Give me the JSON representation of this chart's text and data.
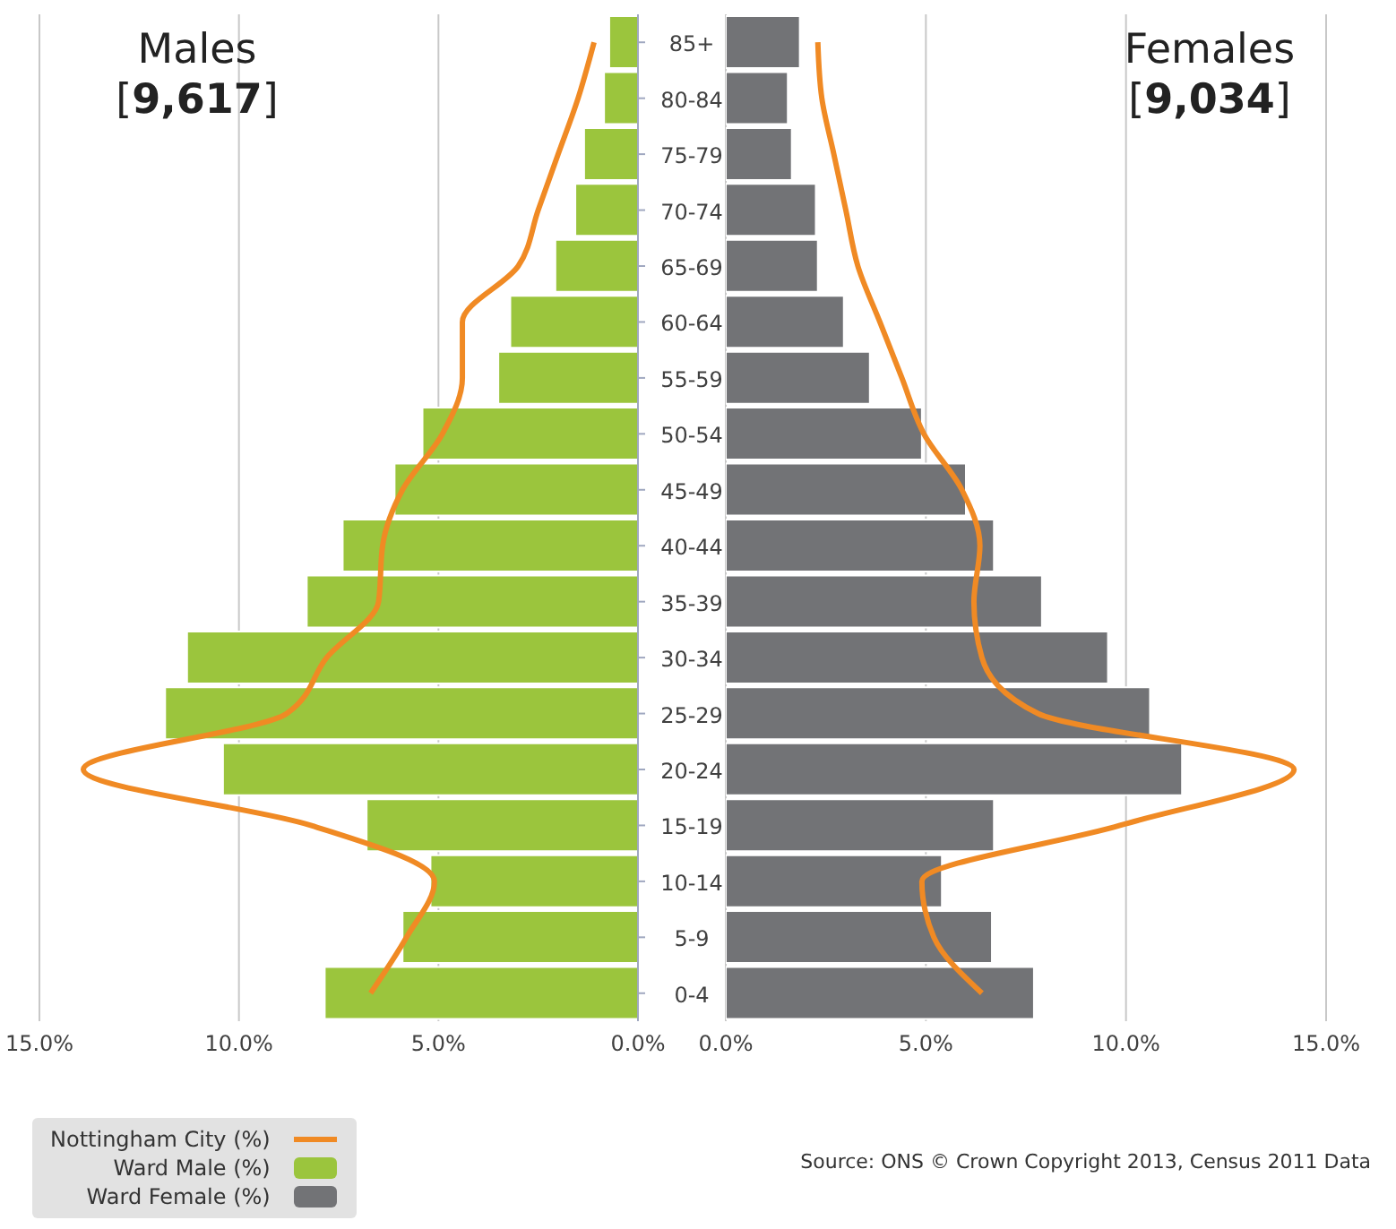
{
  "chart_data": [
    {
      "type": "bar",
      "orientation": "horizontal",
      "title": "Males",
      "subtitle": "[9,617]",
      "categories": [
        "85+",
        "80-84",
        "75-79",
        "70-74",
        "65-69",
        "60-64",
        "55-59",
        "50-54",
        "45-49",
        "40-44",
        "35-39",
        "30-34",
        "25-29",
        "20-24",
        "15-19",
        "10-14",
        "5-9",
        "0-4"
      ],
      "series": [
        {
          "name": "Nottingham City (%)",
          "type": "line",
          "color": "#f08a24",
          "values": [
            1.1,
            1.5,
            2.0,
            2.5,
            3.0,
            4.4,
            4.4,
            4.9,
            5.9,
            6.4,
            6.5,
            7.8,
            8.8,
            13.9,
            8.2,
            5.1,
            5.8,
            6.7
          ]
        },
        {
          "name": "Ward Male (%)",
          "color": "#9bc53d",
          "values": [
            0.72,
            0.85,
            1.35,
            1.57,
            2.07,
            3.2,
            3.5,
            5.4,
            6.1,
            7.4,
            8.3,
            11.3,
            11.85,
            10.4,
            6.8,
            5.2,
            5.9,
            7.85
          ]
        }
      ],
      "xlim": [
        15,
        0
      ],
      "xticks": [
        {
          "value": 15,
          "label": "15.0%"
        },
        {
          "value": 10,
          "label": "10.0%"
        },
        {
          "value": 5,
          "label": "5.0%"
        },
        {
          "value": 0,
          "label": "0.0%"
        }
      ],
      "grid": "x",
      "legend": "bottom left"
    },
    {
      "type": "bar",
      "orientation": "horizontal",
      "title": "Females",
      "subtitle": "[9,034]",
      "series": [
        {
          "type": "line",
          "color": "#f08a24",
          "values": [
            2.3,
            2.4,
            2.7,
            3.0,
            3.3,
            3.85,
            4.4,
            4.95,
            5.9,
            6.35,
            6.2,
            6.4,
            7.8,
            14.2,
            9.85,
            4.9,
            5.2,
            6.4
          ]
        },
        {
          "name": "Ward Female (%)",
          "color": "#727376",
          "values": [
            1.85,
            1.55,
            1.65,
            2.25,
            2.3,
            2.95,
            3.6,
            4.9,
            6.0,
            6.7,
            7.9,
            9.55,
            10.6,
            11.4,
            6.7,
            5.4,
            6.65,
            7.7
          ]
        }
      ],
      "xlim": [
        0,
        15
      ],
      "xticks": [
        {
          "value": 0,
          "label": "0.0%"
        },
        {
          "value": 5,
          "label": "5.0%"
        },
        {
          "value": 10,
          "label": "10.0%"
        },
        {
          "value": 15,
          "label": "15.0%"
        }
      ],
      "grid": "x",
      "tick_labels": "x",
      "annotations": [
        "Source: ONS © Crown Copyright 2013, Census 2011 Data"
      ]
    }
  ]
}
